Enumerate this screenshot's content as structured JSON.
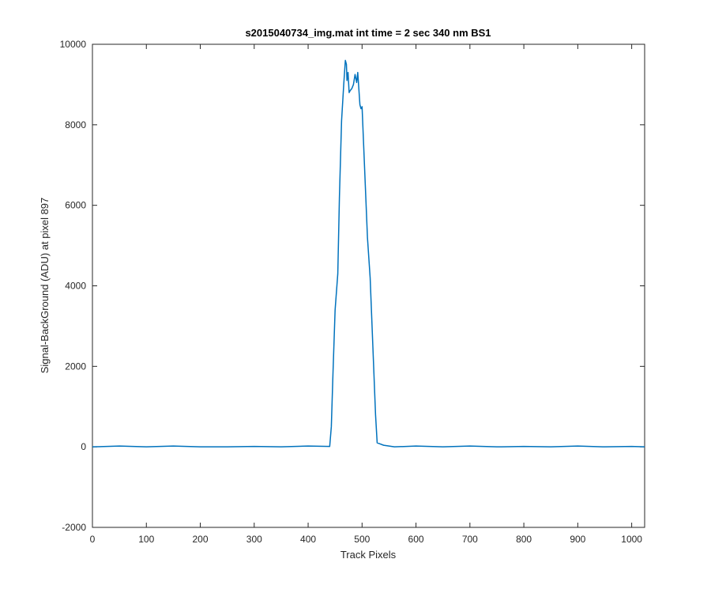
{
  "chart_data": {
    "type": "line",
    "title": "s2015040734_img.mat int time = 2 sec  340 nm BS1",
    "xlabel": "Track Pixels",
    "ylabel": "Signal-BackGround (ADU) at pixel 897",
    "xlim": [
      0,
      1024
    ],
    "ylim": [
      -2000,
      10000
    ],
    "xticks": [
      0,
      100,
      200,
      300,
      400,
      500,
      600,
      700,
      800,
      900,
      1000
    ],
    "yticks": [
      -2000,
      0,
      2000,
      4000,
      6000,
      8000,
      10000
    ],
    "xtick_labels": [
      "0",
      "100",
      "200",
      "300",
      "400",
      "500",
      "600",
      "700",
      "800",
      "900",
      "1000"
    ],
    "ytick_labels": [
      "-2000",
      "0",
      "2000",
      "4000",
      "6000",
      "8000",
      "10000"
    ],
    "grid": false,
    "line_color": "#0072BD",
    "series": [
      {
        "x": [
          0,
          50,
          100,
          150,
          200,
          250,
          300,
          350,
          400,
          440,
          443,
          446,
          450,
          455,
          458,
          462,
          466,
          469,
          471,
          472,
          474,
          476,
          478,
          481,
          484,
          487,
          490,
          492,
          494,
          496,
          498,
          500,
          502,
          506,
          510,
          515,
          520,
          525,
          528,
          532,
          540,
          560,
          600,
          650,
          700,
          750,
          800,
          850,
          900,
          950,
          1000,
          1024
        ],
        "y": [
          0,
          20,
          0,
          20,
          0,
          0,
          10,
          0,
          20,
          10,
          500,
          1800,
          3400,
          4300,
          6200,
          8100,
          9000,
          9600,
          9500,
          9100,
          9300,
          8800,
          8850,
          8900,
          9000,
          9250,
          9050,
          9300,
          8900,
          8500,
          8400,
          8450,
          7800,
          6500,
          5200,
          4200,
          2500,
          800,
          100,
          80,
          40,
          0,
          20,
          0,
          20,
          0,
          10,
          0,
          20,
          0,
          10,
          0
        ]
      }
    ]
  }
}
